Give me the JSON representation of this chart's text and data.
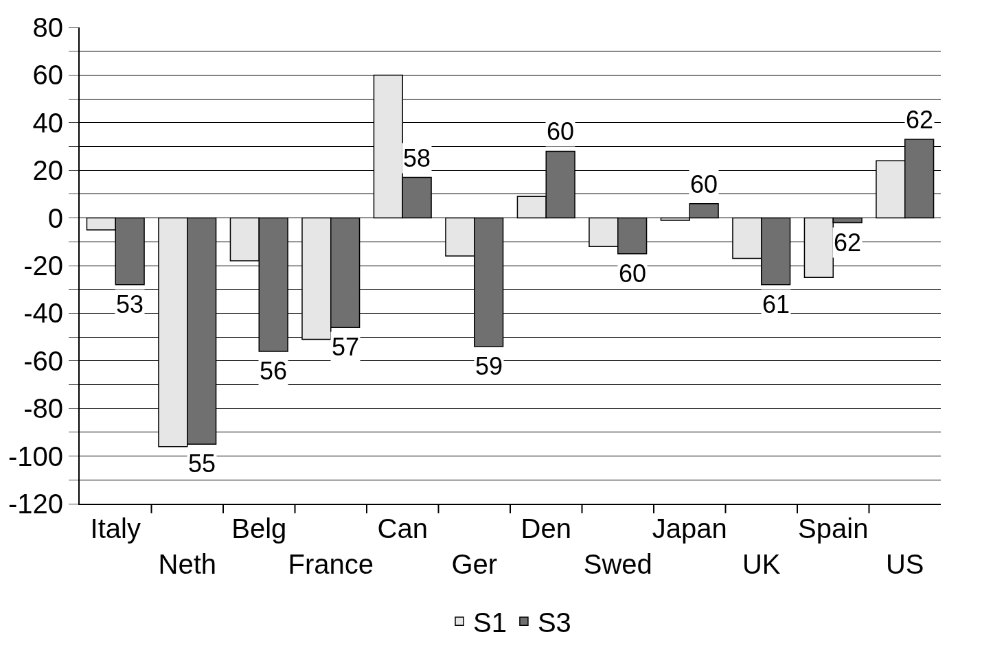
{
  "chart_data": {
    "type": "bar",
    "categories": [
      "Italy",
      "Neth",
      "Belg",
      "France",
      "Can",
      "Ger",
      "Den",
      "Swed",
      "Japan",
      "UK",
      "Spain",
      "US"
    ],
    "series": [
      {
        "name": "S1",
        "color": "#e6e6e6",
        "values": [
          -5,
          -96,
          -18,
          -51,
          60,
          -16,
          9,
          -12,
          -1,
          -17,
          -25,
          24
        ]
      },
      {
        "name": "S3",
        "color": "#707070",
        "values": [
          -28,
          -95,
          -56,
          -46,
          17,
          -54,
          28,
          -15,
          6,
          -28,
          -2,
          33
        ]
      }
    ],
    "ylim": [
      -120,
      80
    ],
    "yticks": [
      -120,
      {
        "value": -110,
        "label": null
      },
      -100,
      {
        "value": -90,
        "label": null
      },
      -80,
      {
        "value": -70,
        "label": null
      },
      -60,
      {
        "value": -50,
        "label": null
      },
      -40,
      {
        "value": -30,
        "label": null
      },
      -20,
      {
        "value": -10,
        "label": null
      },
      0,
      {
        "value": 10,
        "label": null
      },
      20,
      {
        "value": 30,
        "label": null
      },
      40,
      {
        "value": 50,
        "label": null
      },
      60,
      {
        "value": 70,
        "label": null
      },
      80
    ],
    "grid": "y",
    "legend": "bottom",
    "annotations": [
      "53",
      "55",
      "56",
      "57",
      "58",
      "59",
      "60",
      "60",
      "60",
      "61",
      "62",
      "62"
    ]
  }
}
